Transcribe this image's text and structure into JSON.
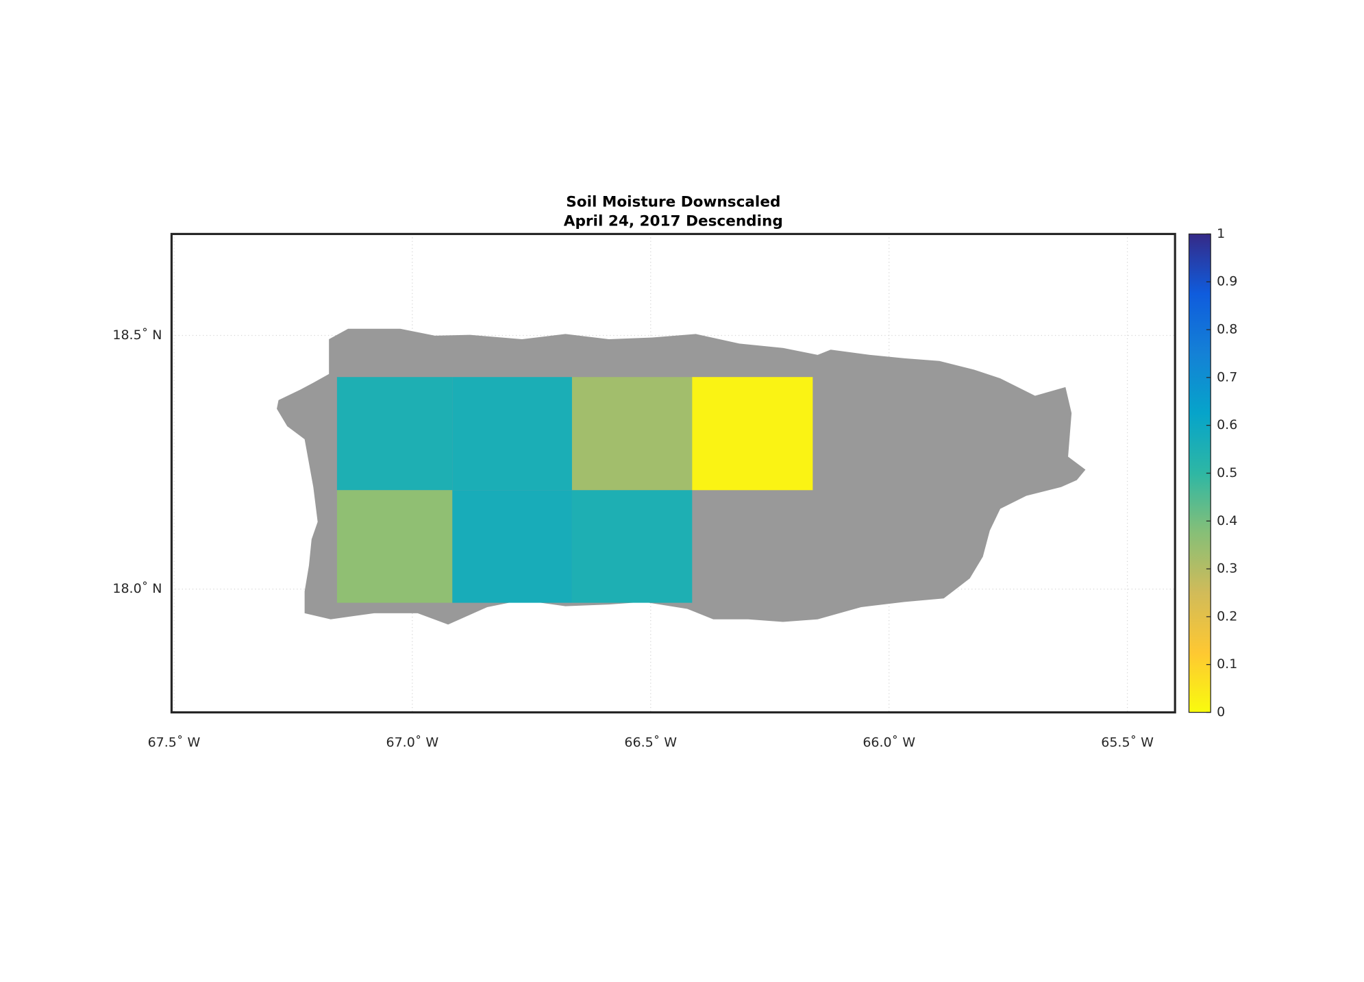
{
  "chart_data": {
    "type": "gridmap",
    "title": "Soil Moisture Downscaled",
    "subtitle": "April 24, 2017 Descending",
    "xlim": [
      -67.505,
      -65.4
    ],
    "ylim": [
      17.757,
      18.7
    ],
    "xticks": [
      {
        "value": -67.5,
        "label": "67.5˚ W"
      },
      {
        "value": -67.0,
        "label": "67.0˚ W"
      },
      {
        "value": -66.5,
        "label": "66.5˚ W"
      },
      {
        "value": -66.0,
        "label": "66.0˚ W"
      },
      {
        "value": -65.5,
        "label": "65.5˚ W"
      }
    ],
    "yticks": [
      {
        "value": 18.0,
        "label": "18.0˚ N"
      },
      {
        "value": 18.5,
        "label": "18.5˚ N"
      }
    ],
    "grid": true,
    "land_color": "#999999",
    "cells": [
      {
        "lon": [
          -67.158,
          -66.916
        ],
        "lat": [
          18.195,
          18.418
        ],
        "value": 0.55
      },
      {
        "lon": [
          -67.158,
          -66.916
        ],
        "lat": [
          17.973,
          18.195
        ],
        "value": 0.36
      },
      {
        "lon": [
          -66.916,
          -66.665
        ],
        "lat": [
          18.195,
          18.418
        ],
        "value": 0.56
      },
      {
        "lon": [
          -66.665,
          -66.413
        ],
        "lat": [
          18.195,
          18.418
        ],
        "value": 0.33
      },
      {
        "lon": [
          -66.413,
          -66.16
        ],
        "lat": [
          18.195,
          18.418
        ],
        "value": 0.02
      },
      {
        "lon": [
          -66.916,
          -66.665
        ],
        "lat": [
          17.973,
          18.195
        ],
        "value": 0.57
      },
      {
        "lon": [
          -66.665,
          -66.413
        ],
        "lat": [
          17.973,
          18.195
        ],
        "value": 0.55
      }
    ],
    "colorbar": {
      "lim": [
        0,
        1
      ],
      "ticks": [
        0,
        0.1,
        0.2,
        0.3,
        0.4,
        0.5,
        0.6,
        0.7,
        0.8,
        0.9,
        1
      ],
      "colormap": [
        "#f9fb0e",
        "#fec832",
        "#d1bb59",
        "#87bf77",
        "#2eb7a4",
        "#06a4ca",
        "#1481d6",
        "#0f5cdd",
        "#352a87"
      ]
    }
  }
}
